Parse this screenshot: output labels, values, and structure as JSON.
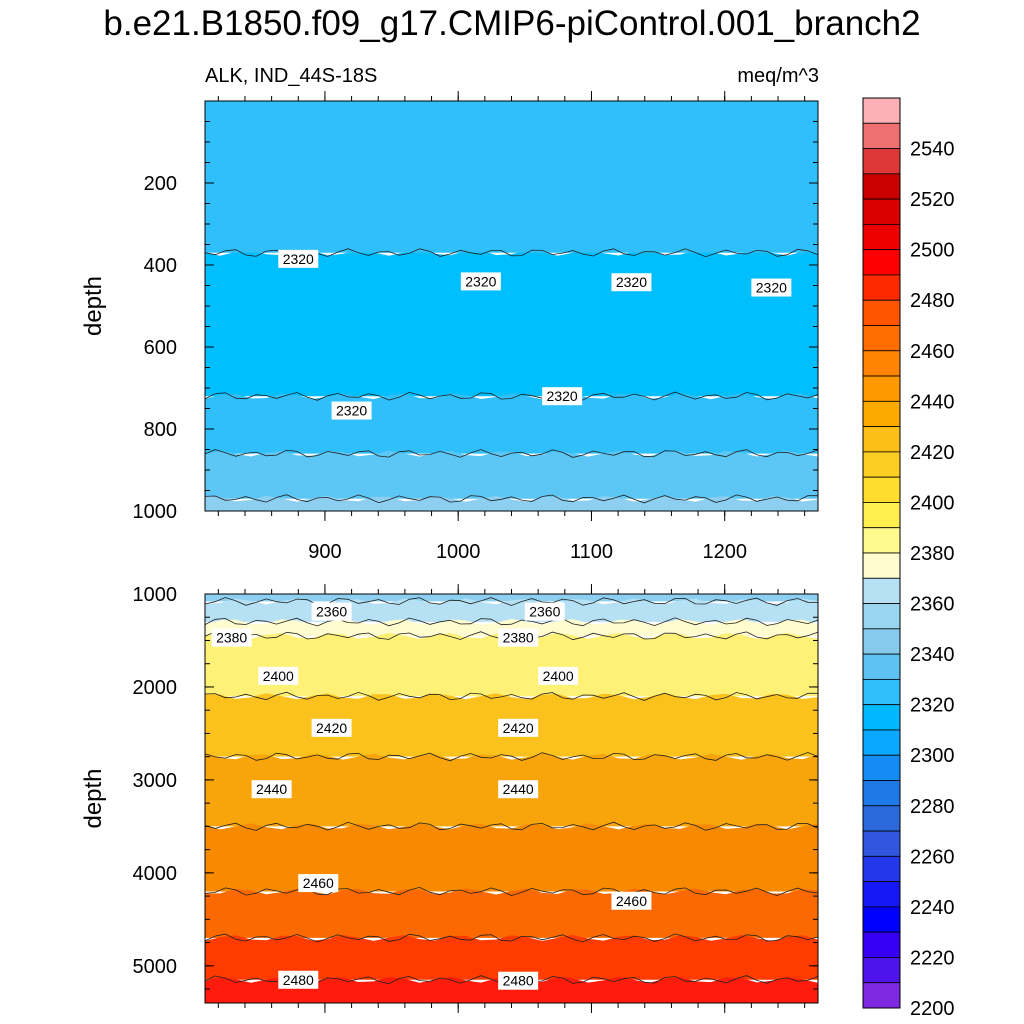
{
  "title": "b.e21.B1850.f09_g17.CMIP6-piControl.001_branch2",
  "subtitle_left": "ALK, IND_44S-18S",
  "subtitle_right": "meq/m^3",
  "chart_data": [
    {
      "type": "heatmap",
      "panel": "upper",
      "x_range": [
        810,
        1270
      ],
      "xticks": [
        "900",
        "1000",
        "1100",
        "1200"
      ],
      "ylabel": "depth",
      "y_range": [
        0,
        1000
      ],
      "y_reversed": true,
      "yticks": [
        "200",
        "400",
        "600",
        "800",
        "1000"
      ],
      "contour_labels": [
        {
          "text": "2320",
          "x": 880,
          "y": 385
        },
        {
          "text": "2320",
          "x": 1017,
          "y": 440
        },
        {
          "text": "2320",
          "x": 1130,
          "y": 442
        },
        {
          "text": "2320",
          "x": 1235,
          "y": 455
        },
        {
          "text": "2320",
          "x": 920,
          "y": 755
        },
        {
          "text": "2320",
          "x": 1078,
          "y": 720
        }
      ],
      "bands": [
        {
          "level_lo": 2300,
          "level_hi": 2320,
          "depth_top": 370,
          "depth_bottom": 720,
          "color": "#00bfff"
        },
        {
          "level_lo": 2320,
          "level_hi": 2340,
          "depth_top": 0,
          "depth_bottom": 370,
          "color": "#2fbffb"
        },
        {
          "level_lo": 2320,
          "level_hi": 2340,
          "depth_top": 720,
          "depth_bottom": 860,
          "color": "#2fbffb"
        },
        {
          "level_lo": 2340,
          "level_hi": 2350,
          "depth_top": 860,
          "depth_bottom": 970,
          "color": "#5cc6f4"
        },
        {
          "level_lo": 2350,
          "level_hi": 2360,
          "depth_top": 970,
          "depth_bottom": 1000,
          "color": "#8ccff0"
        }
      ]
    },
    {
      "type": "heatmap",
      "panel": "lower",
      "x_range": [
        810,
        1270
      ],
      "ylabel": "depth",
      "y_range": [
        1000,
        5400
      ],
      "y_reversed": true,
      "yticks": [
        "1000",
        "2000",
        "3000",
        "4000",
        "5000"
      ],
      "contour_labels": [
        {
          "text": "2360",
          "x": 905,
          "y": 1190
        },
        {
          "text": "2360",
          "x": 1065,
          "y": 1190
        },
        {
          "text": "2380",
          "x": 830,
          "y": 1470
        },
        {
          "text": "2380",
          "x": 1045,
          "y": 1470
        },
        {
          "text": "2400",
          "x": 865,
          "y": 1880
        },
        {
          "text": "2400",
          "x": 1075,
          "y": 1880
        },
        {
          "text": "2420",
          "x": 905,
          "y": 2440
        },
        {
          "text": "2420",
          "x": 1045,
          "y": 2440
        },
        {
          "text": "2440",
          "x": 860,
          "y": 3100
        },
        {
          "text": "2440",
          "x": 1045,
          "y": 3100
        },
        {
          "text": "2460",
          "x": 895,
          "y": 4110
        },
        {
          "text": "2460",
          "x": 1130,
          "y": 4300
        },
        {
          "text": "2480",
          "x": 880,
          "y": 5150
        },
        {
          "text": "2480",
          "x": 1045,
          "y": 5160
        }
      ],
      "bands": [
        {
          "level_lo": 2350,
          "level_hi": 2360,
          "depth_top": 1000,
          "depth_bottom": 1080,
          "color": "#8ccff0"
        },
        {
          "level_lo": 2360,
          "level_hi": 2370,
          "depth_top": 1080,
          "depth_bottom": 1300,
          "color": "#b6e0f3"
        },
        {
          "level_lo": 2370,
          "level_hi": 2380,
          "depth_top": 1300,
          "depth_bottom": 1450,
          "color": "#fffccf"
        },
        {
          "level_lo": 2380,
          "level_hi": 2400,
          "depth_top": 1450,
          "depth_bottom": 2100,
          "color": "#fff176"
        },
        {
          "level_lo": 2400,
          "level_hi": 2420,
          "depth_top": 2100,
          "depth_bottom": 2750,
          "color": "#fbc21d"
        },
        {
          "level_lo": 2420,
          "level_hi": 2440,
          "depth_top": 2750,
          "depth_bottom": 3500,
          "color": "#f7a50b"
        },
        {
          "level_lo": 2440,
          "level_hi": 2460,
          "depth_top": 3500,
          "depth_bottom": 4200,
          "color": "#f88a00"
        },
        {
          "level_lo": 2460,
          "level_hi": 2480,
          "depth_top": 4200,
          "depth_bottom": 4700,
          "color": "#fc6900"
        },
        {
          "level_lo": 2480,
          "level_hi": 2500,
          "depth_top": 4700,
          "depth_bottom": 5150,
          "color": "#ff3b00"
        },
        {
          "level_lo": 2500,
          "level_hi": 2520,
          "depth_top": 5150,
          "depth_bottom": 5400,
          "color": "#ff1c0c"
        }
      ]
    }
  ],
  "colorbar": {
    "labels": [
      "2540",
      "2520",
      "2500",
      "2480",
      "2460",
      "2440",
      "2420",
      "2400",
      "2380",
      "2360",
      "2340",
      "2320",
      "2300",
      "2280",
      "2260",
      "2240",
      "2220",
      "2200"
    ],
    "colors": [
      "#fdb0b6",
      "#ee7070",
      "#de3737",
      "#c80000",
      "#db0000",
      "#ed0000",
      "#ff0000",
      "#ff2a00",
      "#ff5500",
      "#fe6d00",
      "#fe8300",
      "#fe9900",
      "#fdaa00",
      "#fbbf17",
      "#fcce23",
      "#fedd2f",
      "#fff050",
      "#fff98f",
      "#fffccf",
      "#b6e0f3",
      "#99d5f0",
      "#86cbee",
      "#5ec3f3",
      "#2fbffb",
      "#00b8ff",
      "#0aa8ff",
      "#148cf5",
      "#1f7ae8",
      "#2a68dc",
      "#3256e0",
      "#2238ea",
      "#1419f5",
      "#0000ff",
      "#3700f5",
      "#4f14eb",
      "#7d28e1"
    ]
  }
}
